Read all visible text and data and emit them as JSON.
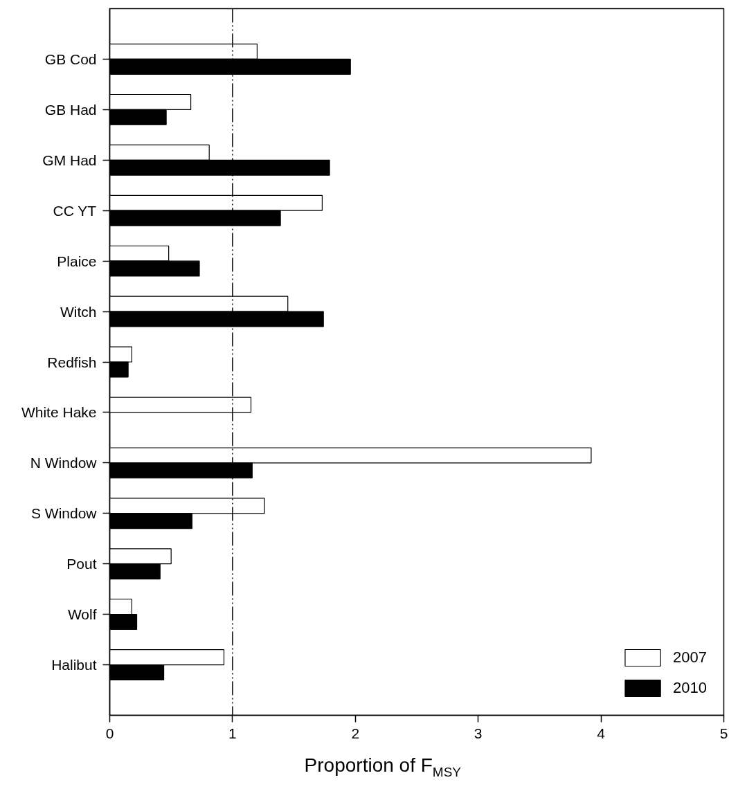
{
  "chart_data": {
    "type": "bar",
    "orientation": "horizontal",
    "xlabel": "Proportion of F$_{MSY}$",
    "categories": [
      "GB Cod",
      "GB Had",
      "GM Had",
      "CC YT",
      "Plaice",
      "Witch",
      "Redfish",
      "White Hake",
      "N Window",
      "S Window",
      "Pout",
      "Wolf",
      "Halibut"
    ],
    "series": [
      {
        "name": "2007",
        "color": "#ffffff",
        "values": [
          1.2,
          0.66,
          0.81,
          1.73,
          0.48,
          1.45,
          0.18,
          1.15,
          3.92,
          1.26,
          0.5,
          0.18,
          0.93
        ]
      },
      {
        "name": "2010",
        "color": "#000000",
        "values": [
          1.96,
          0.46,
          1.79,
          1.39,
          0.73,
          1.74,
          0.15,
          null,
          1.16,
          0.67,
          0.41,
          0.22,
          0.44
        ]
      }
    ],
    "xlim": [
      0,
      5
    ],
    "xticks": [
      0,
      1,
      2,
      3,
      4,
      5
    ],
    "ref_lines": [
      {
        "axis": "x",
        "value": 1,
        "line_style": "dashdot"
      }
    ],
    "legend": "bottom right"
  }
}
